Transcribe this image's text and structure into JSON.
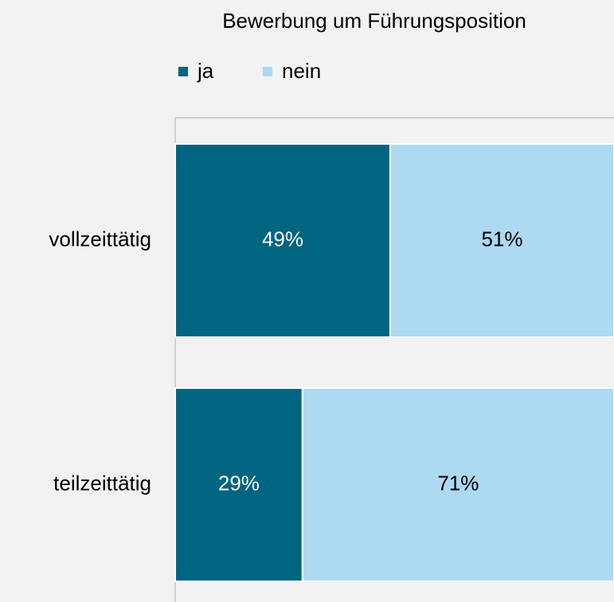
{
  "chart_data": {
    "type": "stacked_barh",
    "title": "Bewerbung um Führungsposition",
    "categories": [
      "vollzeittätig",
      "teilzeittätig"
    ],
    "series": [
      {
        "name": "ja",
        "color": "#006580",
        "values": [
          49,
          29
        ],
        "value_labels": [
          "49%",
          "29%"
        ],
        "label_color": "#ffffff"
      },
      {
        "name": "nein",
        "color": "#add9f3",
        "values": [
          51,
          71
        ],
        "value_labels": [
          "51%",
          "71%"
        ],
        "label_color": "#000000"
      }
    ],
    "xlim": [
      0,
      100
    ]
  }
}
